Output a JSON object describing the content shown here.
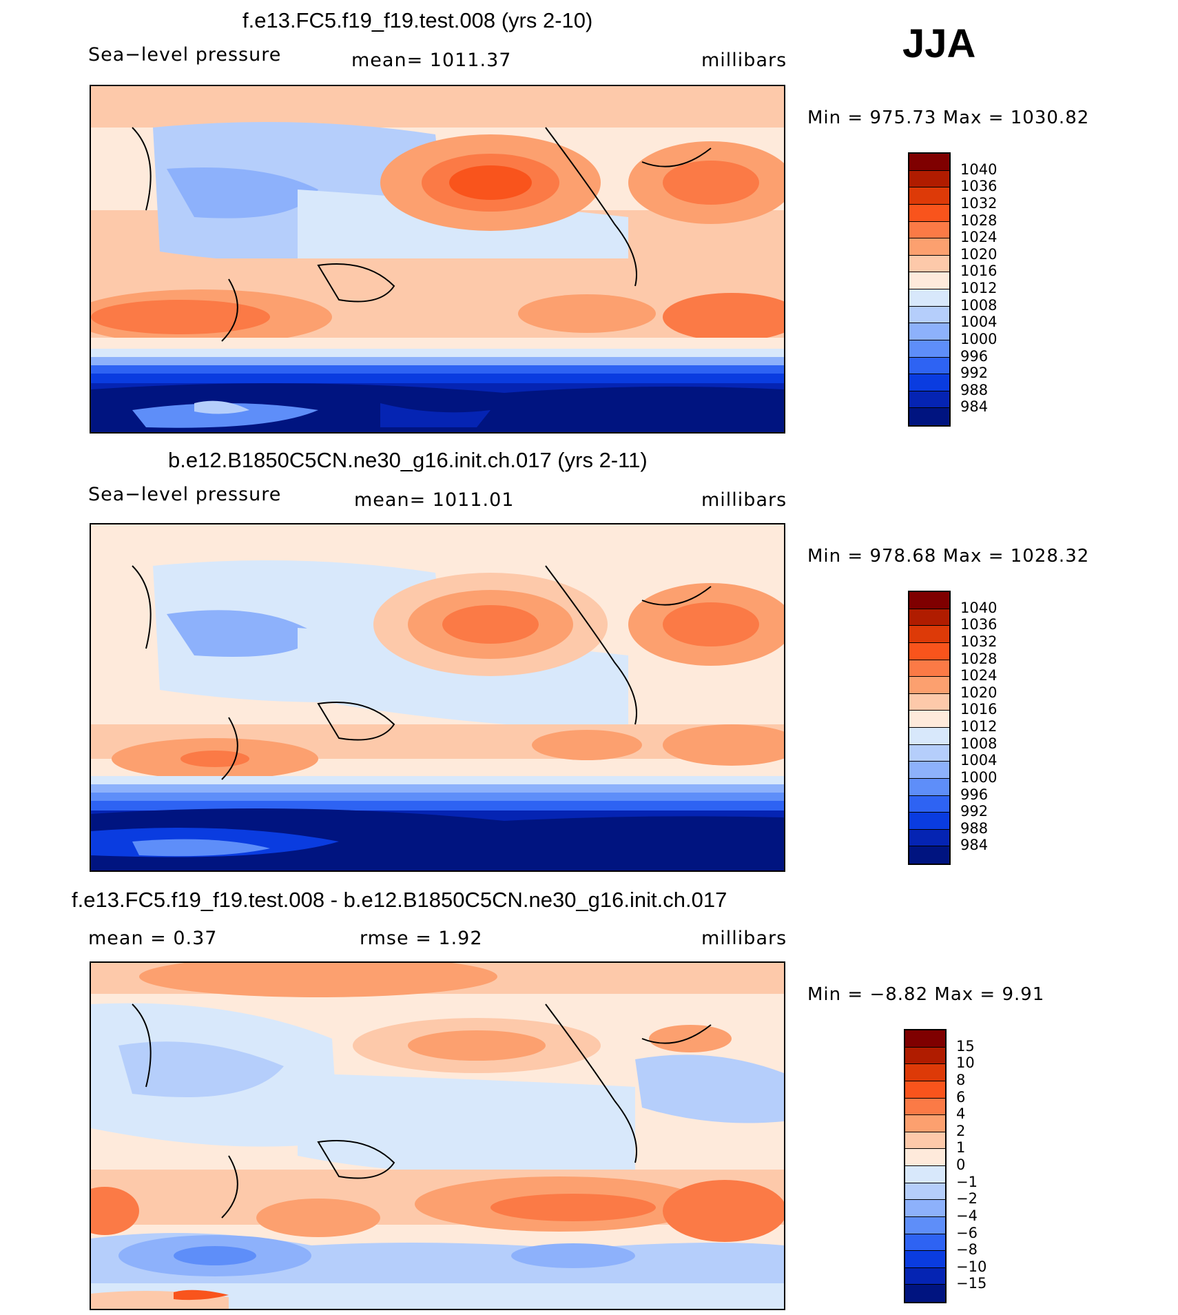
{
  "season": "JJA",
  "panels": [
    {
      "title": "f.e13.FC5.f19_f19.test.008 (yrs 2-10)",
      "field": "Sea−level pressure",
      "stat": "mean=  1011.37",
      "units": "millibars",
      "minmax": "Min  =  975.73  Max  =  1030.82",
      "colorbar_labels": [
        "1040",
        "1036",
        "1032",
        "1028",
        "1024",
        "1020",
        "1016",
        "1012",
        "1008",
        "1004",
        "1000",
        "996",
        "992",
        "988",
        "984"
      ]
    },
    {
      "title": "b.e12.B1850C5CN.ne30_g16.init.ch.017 (yrs 2-11)",
      "field": "Sea−level pressure",
      "stat": "mean=  1011.01",
      "units": "millibars",
      "minmax": "Min  =  978.68  Max  =  1028.32",
      "colorbar_labels": [
        "1040",
        "1036",
        "1032",
        "1028",
        "1024",
        "1020",
        "1016",
        "1012",
        "1008",
        "1004",
        "1000",
        "996",
        "992",
        "988",
        "984"
      ]
    },
    {
      "title": "f.e13.FC5.f19_f19.test.008 - b.e12.B1850C5CN.ne30_g16.init.ch.017",
      "field": "mean  =      0.37",
      "stat": "rmse  =      1.92",
      "units": "millibars",
      "minmax": "Min  =    −8.82  Max  =      9.91",
      "colorbar_labels": [
        "15",
        "10",
        "8",
        "6",
        "4",
        "2",
        "1",
        "0",
        "−1",
        "−2",
        "−4",
        "−6",
        "−8",
        "−10",
        "−15"
      ]
    }
  ],
  "colors": {
    "abs": [
      "#7f0000",
      "#b01c00",
      "#dd3a08",
      "#f9541c",
      "#fb7a46",
      "#fca06f",
      "#fdc9aa",
      "#feeadb",
      "#d8e8fb",
      "#b5cefb",
      "#8db1fb",
      "#5e8ef9",
      "#2e63f3",
      "#0a3ce0",
      "#0524b3",
      "#001480"
    ],
    "diff": [
      "#7f0000",
      "#b01c00",
      "#dd3a08",
      "#f9541c",
      "#fb7a46",
      "#fca06f",
      "#fdc9aa",
      "#feeadb",
      "#d8e8fb",
      "#b5cefb",
      "#8db1fb",
      "#5e8ef9",
      "#2e63f3",
      "#0a3ce0",
      "#0524b3",
      "#001480"
    ]
  }
}
